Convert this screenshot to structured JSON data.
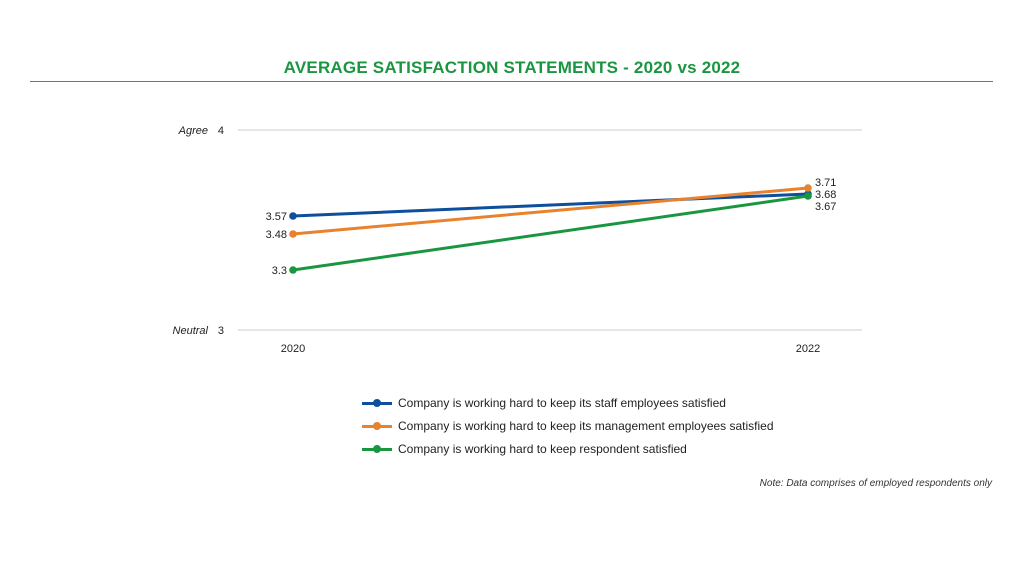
{
  "title": "AVERAGE SATISFACTION STATEMENTS - 2020 vs 2022",
  "colors": {
    "title": "#1a9641",
    "rule": "#2e9e4f",
    "grid": "#cfcfcf"
  },
  "note": "Note: Data comprises of employed respondents only",
  "chart_data": {
    "type": "line",
    "title": "AVERAGE SATISFACTION STATEMENTS - 2020 vs 2022",
    "categories": [
      "2020",
      "2022"
    ],
    "ylim": [
      3,
      4
    ],
    "yticks": [
      {
        "value": 4,
        "label": "4",
        "name": "Agree"
      },
      {
        "value": 3,
        "label": "3",
        "name": "Neutral"
      }
    ],
    "xlabel": "",
    "ylabel": "",
    "grid": true,
    "legend_position": "bottom",
    "series": [
      {
        "name": "Company is working hard to keep its staff employees satisfied",
        "color": "#0d4f9c",
        "values": [
          3.57,
          3.68
        ],
        "labels": [
          "3.57",
          "3.68"
        ]
      },
      {
        "name": "Company is working hard to keep its management employees satisfied",
        "color": "#e8822e",
        "values": [
          3.48,
          3.71
        ],
        "labels": [
          "3.48",
          "3.71"
        ]
      },
      {
        "name": "Company is working hard to keep respondent satisfied",
        "color": "#1a9641",
        "values": [
          3.3,
          3.67
        ],
        "labels": [
          "3.3",
          "3.67"
        ]
      }
    ]
  }
}
